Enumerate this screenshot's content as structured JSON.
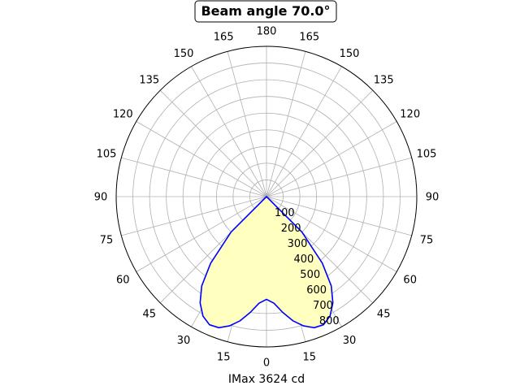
{
  "chart_data": {
    "type": "polar-area",
    "title": "Beam angle 70.0°",
    "xlabel": "IMax 3624 cd",
    "theta_zero": "bottom",
    "angle_tick_labels": [
      "0",
      "15",
      "30",
      "45",
      "60",
      "75",
      "90",
      "105",
      "120",
      "135",
      "150",
      "165",
      "180",
      "165",
      "150",
      "135",
      "120",
      "105",
      "90",
      "75",
      "60",
      "45",
      "30",
      "15"
    ],
    "radial_ticks": [
      100,
      200,
      300,
      400,
      500,
      600,
      700,
      800
    ],
    "radial_tick_labels": [
      "100",
      "200",
      "300",
      "400",
      "500",
      "600",
      "700",
      "800"
    ],
    "rlim": [
      0,
      900
    ],
    "grid": true,
    "series": [
      {
        "color": "#0000ff",
        "fill": "#ffffc0",
        "angle_deg": [
          -50,
          -45,
          -40,
          -36,
          -32,
          -28,
          -24,
          -20,
          -16,
          -12,
          -8,
          -4,
          0,
          4,
          8,
          12,
          16,
          20,
          24,
          28,
          32,
          36,
          40,
          45,
          50
        ],
        "values": [
          0,
          300,
          520,
          660,
          750,
          810,
          840,
          835,
          805,
          760,
          700,
          640,
          615,
          640,
          700,
          760,
          805,
          835,
          840,
          810,
          750,
          660,
          520,
          300,
          0
        ]
      }
    ]
  }
}
